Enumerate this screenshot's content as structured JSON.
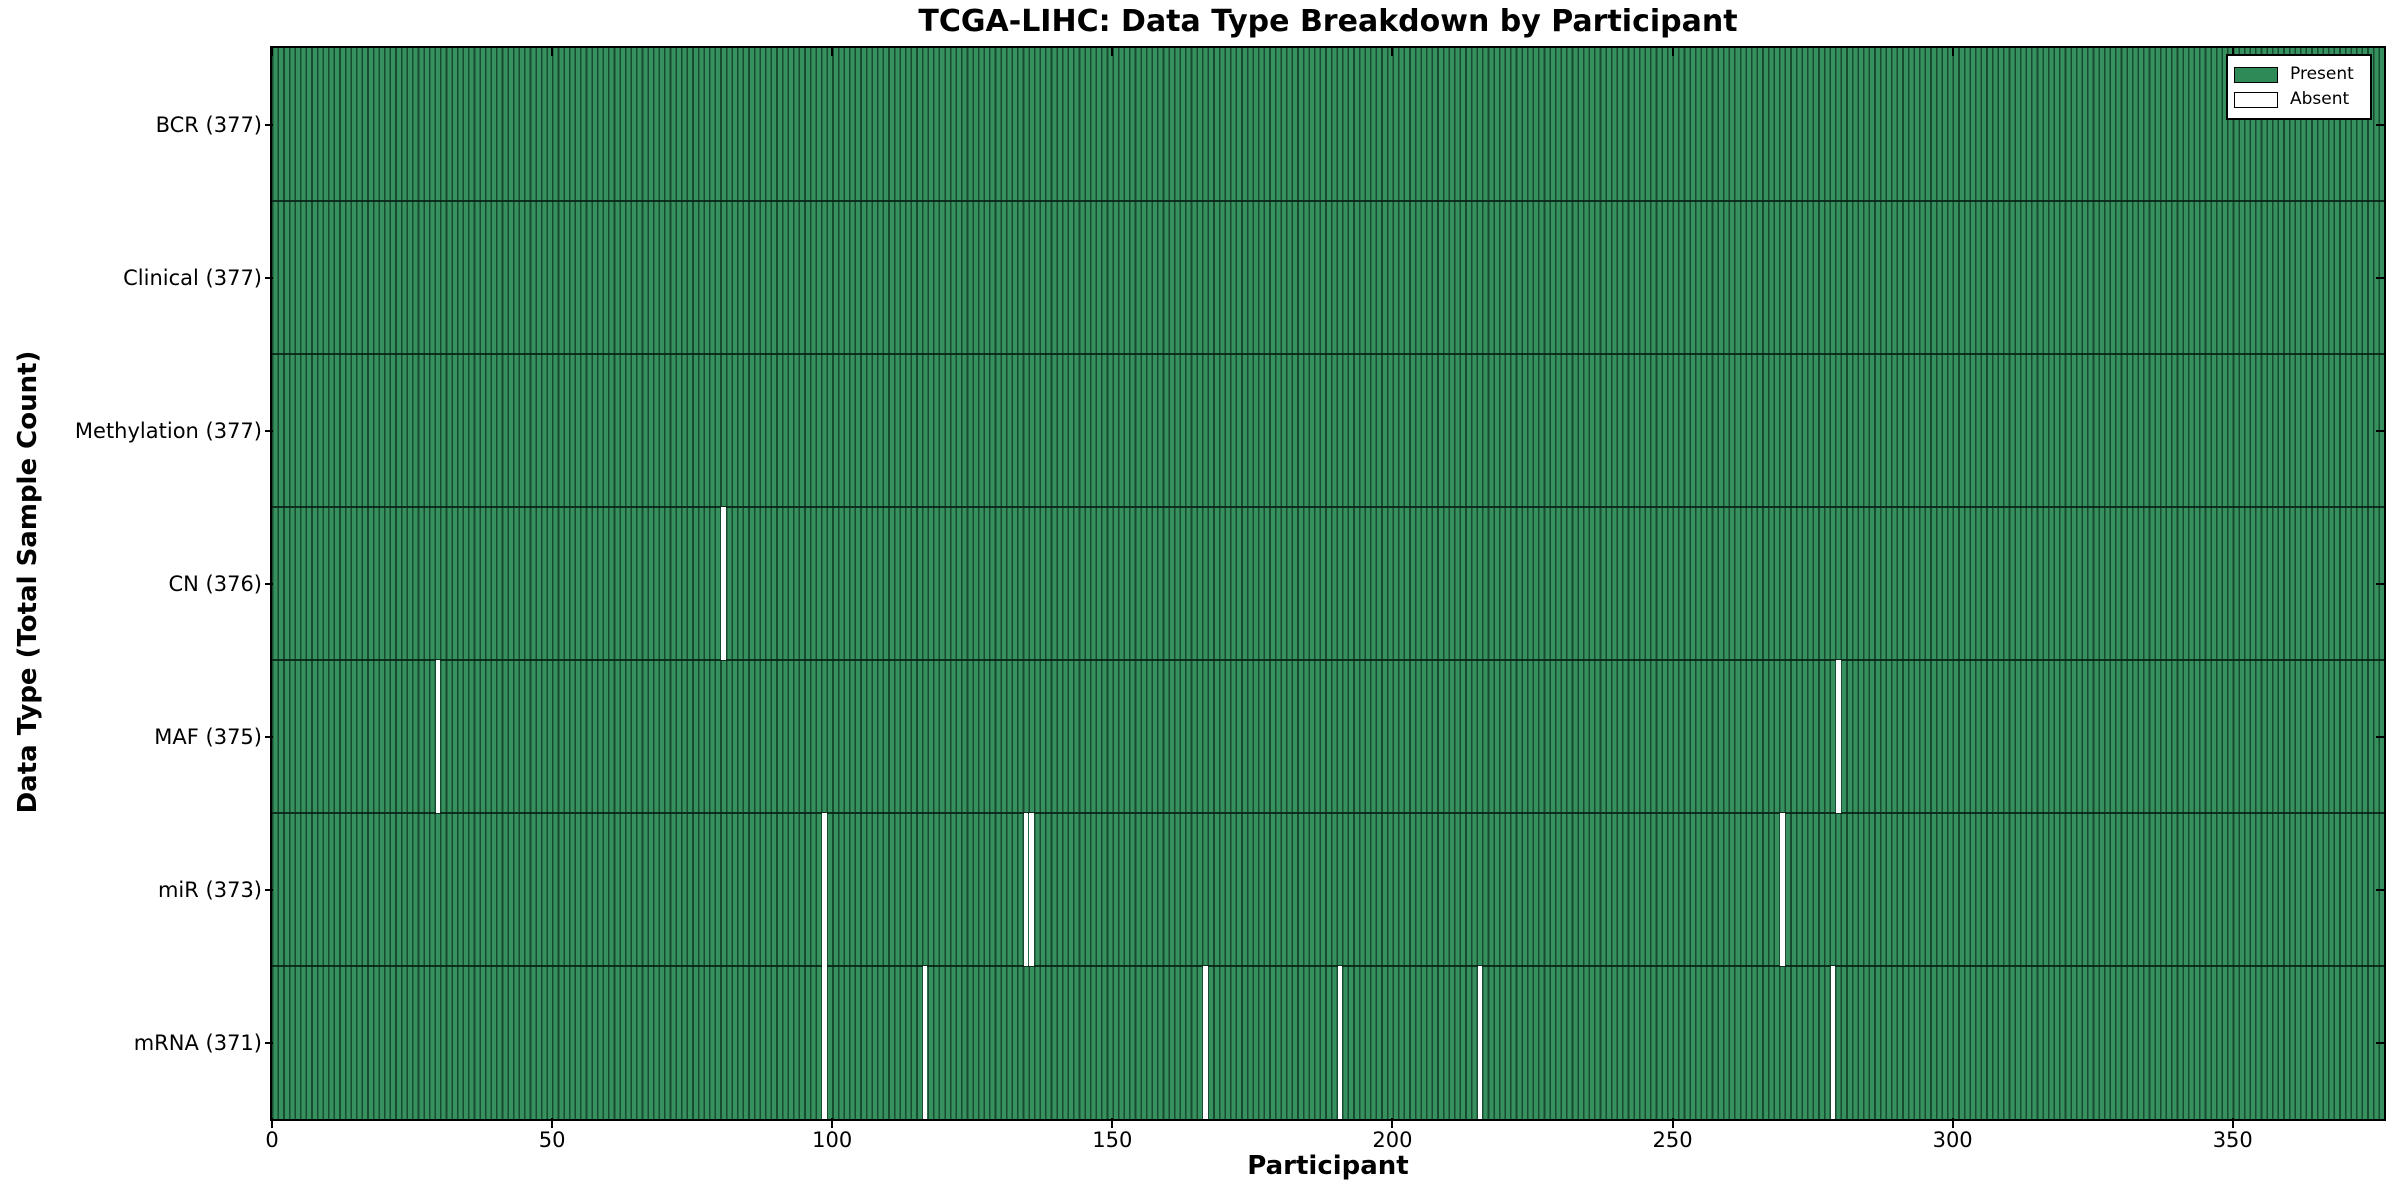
{
  "colors": {
    "present_fill": "#2e8b57",
    "present_stripe_light": "#37915f",
    "present_stripe_edge": "#174c30",
    "absent_fill": "#ffffff",
    "axis_color": "#000000",
    "background": "#ffffff"
  },
  "chart_data": {
    "type": "heatmap",
    "title": "TCGA-LIHC: Data Type Breakdown by Participant",
    "xlabel": "Participant",
    "ylabel": "Data Type (Total Sample Count)",
    "xlim": [
      0,
      377
    ],
    "n_participants": 377,
    "x_ticks": [
      0,
      50,
      100,
      150,
      200,
      250,
      300,
      350
    ],
    "grid": false,
    "legend_position": "upper right",
    "legend": [
      {
        "label": "Present",
        "color": "#2e8b57"
      },
      {
        "label": "Absent",
        "color": "#ffffff"
      }
    ],
    "rows": [
      {
        "label": "BCR (377)",
        "data_type": "BCR",
        "total_samples": 377,
        "absent_participants": []
      },
      {
        "label": "Clinical (377)",
        "data_type": "Clinical",
        "total_samples": 377,
        "absent_participants": []
      },
      {
        "label": "Methylation (377)",
        "data_type": "Methylation",
        "total_samples": 377,
        "absent_participants": []
      },
      {
        "label": "CN (376)",
        "data_type": "CN",
        "total_samples": 376,
        "absent_participants": [
          80
        ]
      },
      {
        "label": "MAF (375)",
        "data_type": "MAF",
        "total_samples": 375,
        "absent_participants": [
          29,
          279
        ]
      },
      {
        "label": "miR (373)",
        "data_type": "miR",
        "total_samples": 373,
        "absent_participants": [
          98,
          134,
          135,
          269
        ]
      },
      {
        "label": "mRNA (371)",
        "data_type": "mRNA",
        "total_samples": 371,
        "absent_participants": [
          98,
          116,
          166,
          190,
          215,
          278
        ]
      }
    ]
  }
}
